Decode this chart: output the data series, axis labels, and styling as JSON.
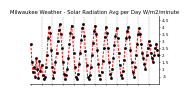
{
  "title": "Milwaukee Weather - Solar Radiation Avg per Day W/m2/minute",
  "line_color": "#ff0000",
  "marker_color": "#000000",
  "bg_color": "#ffffff",
  "grid_color": "#888888",
  "y_values": [
    2.8,
    1.5,
    0.8,
    1.2,
    0.5,
    1.8,
    1.0,
    0.4,
    1.6,
    0.9,
    1.3,
    0.6,
    0.3,
    0.5,
    1.2,
    2.0,
    3.2,
    4.0,
    3.6,
    2.4,
    1.2,
    0.4,
    0.8,
    1.5,
    2.2,
    3.0,
    3.8,
    4.2,
    3.5,
    2.5,
    1.5,
    0.7,
    0.3,
    0.6,
    1.0,
    1.8,
    2.8,
    3.6,
    4.1,
    3.3,
    2.2,
    1.2,
    0.5,
    0.3,
    0.7,
    1.4,
    2.2,
    3.1,
    3.9,
    4.2,
    3.4,
    2.3,
    1.3,
    0.5,
    0.3,
    0.6,
    1.2,
    2.0,
    2.9,
    3.7,
    4.1,
    3.5,
    2.4,
    1.4,
    0.6,
    0.3,
    0.8,
    1.6,
    2.5,
    3.3,
    4.0,
    3.6,
    2.5,
    1.5,
    0.7,
    0.4,
    1.0,
    1.8,
    2.7,
    3.4,
    3.9,
    3.2,
    2.2,
    1.3,
    0.6,
    0.4,
    0.9,
    1.7,
    2.5,
    3.2,
    3.7,
    4.0,
    3.3,
    2.4,
    1.5,
    0.8,
    0.5,
    1.2,
    2.0,
    2.8,
    3.5,
    3.9,
    3.5,
    2.8,
    2.2,
    1.8,
    1.4,
    1.0,
    2.0,
    2.5,
    3.0,
    2.7,
    2.2,
    1.8,
    1.5,
    2.0,
    2.5,
    2.8,
    2.4,
    2.0
  ],
  "ylim": [
    0.0,
    4.8
  ],
  "yticks": [
    0.5,
    1.0,
    1.5,
    2.0,
    2.5,
    3.0,
    3.5,
    4.0,
    4.5
  ],
  "ytick_labels": [
    ".5",
    "1",
    "1.5",
    "2",
    "2.5",
    "3",
    "3.5",
    "4",
    "4.5"
  ],
  "grid_positions": [
    10,
    20,
    30,
    40,
    50,
    60,
    70,
    80,
    90,
    100,
    110
  ],
  "title_fontsize": 3.8,
  "tick_fontsize": 3.0,
  "line_width": 0.7,
  "marker_size": 0.9
}
